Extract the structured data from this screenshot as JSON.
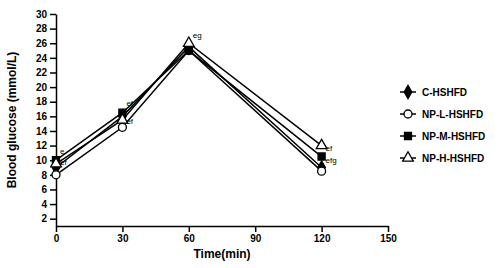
{
  "chart_data": {
    "type": "line",
    "x_label": "Time(min)",
    "y_label": "Blood glucose (mmol/L)",
    "x": [
      0,
      30,
      60,
      120
    ],
    "xlim": [
      0,
      150
    ],
    "xticks": [
      0,
      30,
      60,
      90,
      120,
      150
    ],
    "ylim": [
      1,
      30
    ],
    "yticks": [
      2,
      4,
      6,
      8,
      10,
      12,
      14,
      16,
      18,
      20,
      22,
      24,
      26,
      28,
      30
    ],
    "grid": false,
    "legend": "right",
    "series": [
      {
        "name": "C-HSHFD",
        "color": "#000000",
        "marker": "diamond",
        "line_style": "solid",
        "values": [
          9,
          16,
          25.5,
          9
        ]
      },
      {
        "name": "NP-L-HSHFD",
        "color": "#000000",
        "marker": "circle-open",
        "line_style": "solid",
        "values": [
          8,
          14.5,
          25,
          8.5
        ]
      },
      {
        "name": "NP-M-HSHFD",
        "color": "#000000",
        "marker": "square",
        "line_style": "solid",
        "values": [
          10,
          16.5,
          25,
          10.5
        ]
      },
      {
        "name": "NP-H-HSHFD",
        "color": "#000000",
        "marker": "triangle-open",
        "line_style": "solid",
        "values": [
          9.5,
          15.5,
          26,
          12
        ]
      }
    ],
    "annotations": [
      {
        "text": "e",
        "x": 0,
        "y": 10.8
      },
      {
        "text": "ef",
        "x": 0,
        "y": 9.3
      },
      {
        "text": "ef",
        "x": 30,
        "y": 17.4
      },
      {
        "text": "ef",
        "x": 30,
        "y": 15
      },
      {
        "text": "eg",
        "x": 60,
        "y": 26.7
      },
      {
        "text": "ef",
        "x": 120,
        "y": 11.2
      },
      {
        "text": "efg",
        "x": 120,
        "y": 9.6
      }
    ]
  }
}
